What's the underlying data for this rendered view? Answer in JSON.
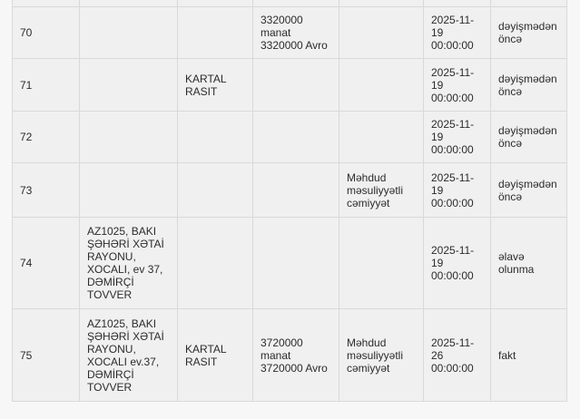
{
  "colors": {
    "page_bg": "#f7f7f7",
    "cell_bg": "#f0f0f0",
    "border": "#d9d9d9",
    "text": "#2b2b2b"
  },
  "table": {
    "columns": [
      "num",
      "address",
      "name",
      "amount",
      "company_type",
      "date",
      "status"
    ],
    "rows": [
      {
        "num": "70",
        "address": "",
        "name": "",
        "amount": "3320000\nmanat\n3320000 Avro",
        "company_type": "",
        "date": "2025-11-\n19\n00:00:00",
        "status": "dəyişmədən\nöncə"
      },
      {
        "num": "71",
        "address": "",
        "name": "KARTAL\nRASIT",
        "amount": "",
        "company_type": "",
        "date": "2025-11-\n19\n00:00:00",
        "status": "dəyişmədən\nöncə"
      },
      {
        "num": "72",
        "address": "",
        "name": "",
        "amount": "",
        "company_type": "",
        "date": "2025-11-\n19\n00:00:00",
        "status": "dəyişmədən\nöncə"
      },
      {
        "num": "73",
        "address": "",
        "name": "",
        "amount": "",
        "company_type": "Məhdud\nməsuliyyətli\ncəmiyyət",
        "date": "2025-11-\n19\n00:00:00",
        "status": "dəyişmədən\nöncə"
      },
      {
        "num": "74",
        "address": "AZ1025, BAKI\nŞƏHƏRİ XƏTAİ\nRAYONU,\nXOCALI, ev 37,\nDƏMİRÇİ\nTOVVER",
        "name": "",
        "amount": "",
        "company_type": "",
        "date": "2025-11-\n19\n00:00:00",
        "status": "əlavə\nolunma"
      },
      {
        "num": "75",
        "address": "AZ1025, BAKI\nŞƏHƏRİ XƏTAİ\nRAYONU,\nXOCALI ev.37,\nDƏMİRÇİ\nTOVVER",
        "name": "KARTAL\nRASIT",
        "amount": "3720000\nmanat\n3720000 Avro",
        "company_type": "Məhdud\nməsuliyyətli\ncəmiyyət",
        "date": "2025-11-\n26\n00:00:00",
        "status": "fakt"
      }
    ]
  }
}
